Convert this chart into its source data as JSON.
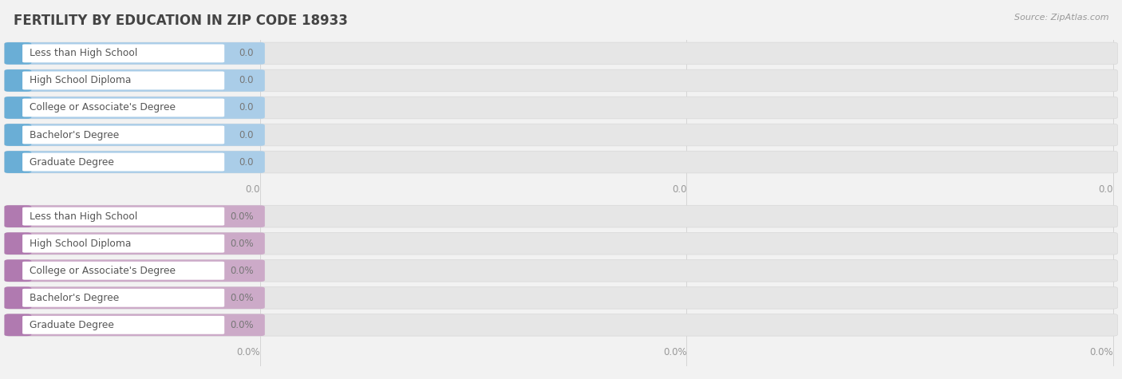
{
  "title": "FERTILITY BY EDUCATION IN ZIP CODE 18933",
  "source": "Source: ZipAtlas.com",
  "categories": [
    "Less than High School",
    "High School Diploma",
    "College or Associate's Degree",
    "Bachelor's Degree",
    "Graduate Degree"
  ],
  "group1_values": [
    0.0,
    0.0,
    0.0,
    0.0,
    0.0
  ],
  "group2_values": [
    0.0,
    0.0,
    0.0,
    0.0,
    0.0
  ],
  "group1_bar_color": "#aacde8",
  "group1_tab_color": "#6aaed6",
  "group2_bar_color": "#ccaac8",
  "group2_tab_color": "#b07ab0",
  "group1_value_strs": [
    "0.0",
    "0.0",
    "0.0",
    "0.0",
    "0.0"
  ],
  "group2_value_strs": [
    "0.0%",
    "0.0%",
    "0.0%",
    "0.0%",
    "0.0%"
  ],
  "group1_tick_labels": [
    "0.0",
    "0.0",
    "0.0"
  ],
  "group2_tick_labels": [
    "0.0%",
    "0.0%",
    "0.0%"
  ],
  "bg_color": "#f2f2f2",
  "bar_outer_color": "#e8e8e8",
  "bar_inner_white": "#ffffff",
  "title_color": "#444444",
  "source_color": "#999999",
  "tick_color": "#999999",
  "label_color": "#555555",
  "value_color": "#888888"
}
